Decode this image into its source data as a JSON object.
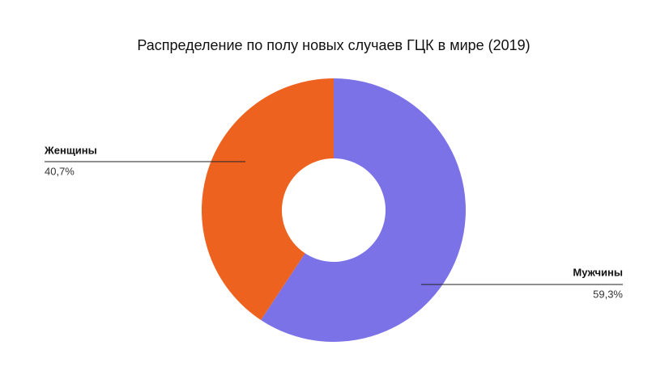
{
  "chart_data": {
    "type": "donut",
    "title": "Распределение по полу новых случаев ГЦК в мире (2019)",
    "categories": [
      "Мужчины",
      "Женщины"
    ],
    "values": [
      59.3,
      40.7
    ],
    "value_labels": [
      "59,3%",
      "40,7%"
    ],
    "colors": [
      "#7b72e8",
      "#ee6220"
    ]
  }
}
